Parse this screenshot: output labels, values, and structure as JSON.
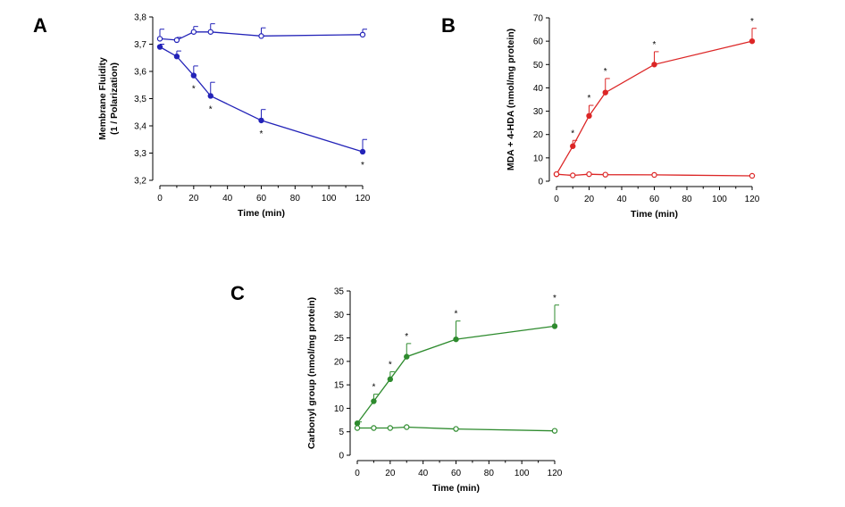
{
  "panels": {
    "a": {
      "letter": "A"
    },
    "b": {
      "letter": "B"
    },
    "c": {
      "letter": "C"
    }
  },
  "chart_data": [
    {
      "id": "a",
      "type": "line",
      "color": "#2323b8",
      "xlabel": "Time (min)",
      "ylabel": "Membrane Fluidity",
      "ylabel2": "(1 / Polarization)",
      "xlim": [
        0,
        120
      ],
      "ylim": [
        3.2,
        3.8
      ],
      "xticks": [
        "0",
        "20",
        "40",
        "60",
        "80",
        "100",
        "120"
      ],
      "xtick_values": [
        0,
        20,
        40,
        60,
        80,
        100,
        120
      ],
      "yticks": [
        "3,2",
        "3,3",
        "3,4",
        "3,5",
        "3,6",
        "3,7",
        "3,8"
      ],
      "ytick_values": [
        3.2,
        3.3,
        3.4,
        3.5,
        3.6,
        3.7,
        3.8
      ],
      "grid": false,
      "series": [
        {
          "marker": "open-circle",
          "x": [
            0,
            10,
            20,
            30,
            60,
            120
          ],
          "y": [
            3.72,
            3.715,
            3.745,
            3.745,
            3.73,
            3.735
          ],
          "error": [
            0.035,
            0.01,
            0.02,
            0.03,
            0.03,
            0.02
          ],
          "significant": [
            false,
            false,
            false,
            false,
            false,
            false
          ]
        },
        {
          "marker": "filled-circle",
          "x": [
            0,
            10,
            20,
            30,
            60,
            120
          ],
          "y": [
            3.69,
            3.655,
            3.585,
            3.51,
            3.42,
            3.305
          ],
          "error": [
            0.01,
            0.02,
            0.035,
            0.05,
            0.04,
            0.045
          ],
          "significant": [
            false,
            false,
            true,
            true,
            true,
            true
          ]
        }
      ],
      "annotation": "*"
    },
    {
      "id": "b",
      "type": "line",
      "color": "#dc2626",
      "xlabel": "Time (min)",
      "ylabel": "MDA + 4-HDA (nmol/mg protein)",
      "xlim": [
        0,
        120
      ],
      "ylim": [
        0,
        70
      ],
      "xticks": [
        "0",
        "20",
        "40",
        "60",
        "80",
        "100",
        "120"
      ],
      "xtick_values": [
        0,
        20,
        40,
        60,
        80,
        100,
        120
      ],
      "yticks": [
        "0",
        "10",
        "20",
        "30",
        "40",
        "50",
        "60",
        "70"
      ],
      "ytick_values": [
        0,
        10,
        20,
        30,
        40,
        50,
        60,
        70
      ],
      "grid": false,
      "series": [
        {
          "marker": "filled-circle",
          "x": [
            0,
            10,
            20,
            30,
            60,
            120
          ],
          "y": [
            3,
            15,
            28,
            38,
            50,
            60
          ],
          "error": [
            0,
            2.5,
            4.5,
            6,
            5.5,
            5.5
          ],
          "significant": [
            false,
            true,
            true,
            true,
            true,
            true
          ]
        },
        {
          "marker": "open-circle",
          "x": [
            0,
            10,
            20,
            30,
            60,
            120
          ],
          "y": [
            3,
            2.5,
            3,
            2.8,
            2.7,
            2.3
          ],
          "error": [
            0,
            0,
            0,
            0,
            0,
            0
          ],
          "significant": [
            false,
            false,
            false,
            false,
            false,
            false
          ]
        }
      ],
      "annotation": "*"
    },
    {
      "id": "c",
      "type": "line",
      "color": "#2e8b2e",
      "xlabel": "Time (min)",
      "ylabel": "Carbonyl group (nmol/mg protein)",
      "xlim": [
        0,
        120
      ],
      "ylim": [
        0,
        35
      ],
      "xticks": [
        "0",
        "20",
        "40",
        "60",
        "80",
        "100",
        "120"
      ],
      "xtick_values": [
        0,
        20,
        40,
        60,
        80,
        100,
        120
      ],
      "yticks": [
        "0",
        "5",
        "10",
        "15",
        "20",
        "25",
        "30",
        "35"
      ],
      "ytick_values": [
        0,
        5,
        10,
        15,
        20,
        25,
        30,
        35
      ],
      "grid": false,
      "series": [
        {
          "marker": "filled-circle",
          "x": [
            0,
            10,
            20,
            30,
            60,
            120
          ],
          "y": [
            6.8,
            11.5,
            16.2,
            21,
            24.7,
            27.5
          ],
          "error": [
            0.3,
            1.5,
            1.6,
            2.8,
            3.9,
            4.5
          ],
          "significant": [
            false,
            true,
            true,
            true,
            true,
            true
          ]
        },
        {
          "marker": "open-circle",
          "x": [
            0,
            10,
            20,
            30,
            60,
            120
          ],
          "y": [
            5.8,
            5.8,
            5.8,
            6,
            5.6,
            5.2
          ],
          "error": [
            0,
            0,
            0,
            0,
            0,
            0
          ],
          "significant": [
            false,
            false,
            false,
            false,
            false,
            false
          ]
        }
      ],
      "annotation": "*"
    }
  ]
}
